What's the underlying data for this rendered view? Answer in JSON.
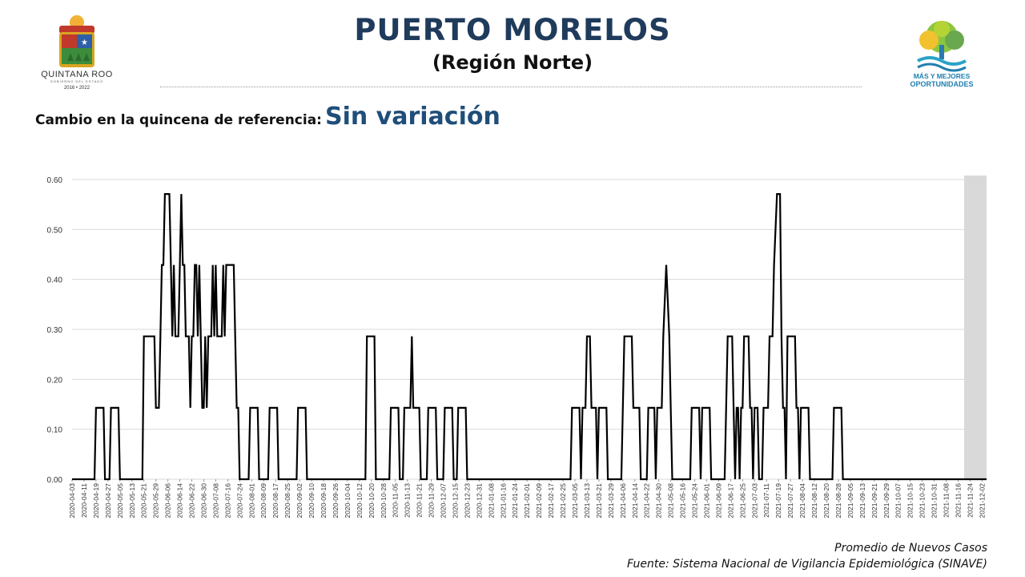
{
  "header": {
    "title": "PUERTO MORELOS",
    "subtitle": "(Región Norte)"
  },
  "left_logo": {
    "name": "QUINTANA ROO",
    "tagline": "GOBIERNO DEL ESTADO",
    "years": "2016 • 2022"
  },
  "right_logo": {
    "line1": "MÁS Y MEJORES",
    "line2": "OPORTUNIDADES"
  },
  "change": {
    "label": "Cambio en la quincena de referencia:",
    "value": "Sin variación"
  },
  "footer": {
    "line1": "Promedio de Nuevos Casos",
    "line2": "Fuente: Sistema Nacional de Vigilancia Epidemiológica (SINAVE)"
  },
  "colors": {
    "title": "#1f3b5c",
    "change_value": "#1f4e79",
    "line": "#000000",
    "grid": "#d9d9d9",
    "shade": "#d9d9d9"
  },
  "chart_data": {
    "type": "line",
    "title": "",
    "xlabel": "",
    "ylabel": "",
    "ylim": [
      0,
      0.6
    ],
    "grid": true,
    "legend": "none",
    "y_ticks": [
      "0.00",
      "0.10",
      "0.20",
      "0.30",
      "0.40",
      "0.50",
      "0.60"
    ],
    "x_tick_labels": [
      "2020-04-03",
      "2020-04-11",
      "2020-04-19",
      "2020-04-27",
      "2020-05-05",
      "2020-05-13",
      "2020-05-21",
      "2020-05-29",
      "2020-06-06",
      "2020-06-14",
      "2020-06-22",
      "2020-06-30",
      "2020-07-08",
      "2020-07-16",
      "2020-07-24",
      "2020-08-01",
      "2020-08-09",
      "2020-08-17",
      "2020-08-25",
      "2020-09-02",
      "2020-09-10",
      "2020-09-18",
      "2020-09-26",
      "2020-10-04",
      "2020-10-12",
      "2020-10-20",
      "2020-10-28",
      "2020-11-05",
      "2020-11-13",
      "2020-11-21",
      "2020-11-29",
      "2020-12-07",
      "2020-12-15",
      "2020-12-23",
      "2020-12-31",
      "2021-01-08",
      "2021-01-16",
      "2021-01-24",
      "2021-02-01",
      "2021-02-09",
      "2021-02-17",
      "2021-02-25",
      "2021-03-05",
      "2021-03-13",
      "2021-03-21",
      "2021-03-29",
      "2021-04-06",
      "2021-04-14",
      "2021-04-22",
      "2021-04-30",
      "2021-05-08",
      "2021-05-16",
      "2021-05-24",
      "2021-06-01",
      "2021-06-09",
      "2021-06-17",
      "2021-06-25",
      "2021-07-03",
      "2021-07-11",
      "2021-07-19",
      "2021-07-27",
      "2021-08-04",
      "2021-08-12",
      "2021-08-20",
      "2021-08-28",
      "2021-09-05",
      "2021-09-13",
      "2021-09-21",
      "2021-09-29",
      "2021-10-07",
      "2021-10-15",
      "2021-10-23",
      "2021-10-31",
      "2021-11-08",
      "2021-11-16",
      "2021-11-24",
      "2021-12-02"
    ],
    "x_range": [
      "2020-04-03",
      "2021-12-05"
    ],
    "shaded_region": [
      "2021-11-20",
      "2021-12-05"
    ],
    "series": [
      {
        "points": [
          [
            "2020-04-03",
            0
          ],
          [
            "2020-04-18",
            0
          ],
          [
            "2020-04-19",
            0.143
          ],
          [
            "2020-04-24",
            0.143
          ],
          [
            "2020-04-25",
            0
          ],
          [
            "2020-04-28",
            0
          ],
          [
            "2020-04-29",
            0.143
          ],
          [
            "2020-05-04",
            0.143
          ],
          [
            "2020-05-05",
            0
          ],
          [
            "2020-05-20",
            0
          ],
          [
            "2020-05-21",
            0.286
          ],
          [
            "2020-05-28",
            0.286
          ],
          [
            "2020-05-29",
            0.143
          ],
          [
            "2020-05-31",
            0.143
          ],
          [
            "2020-06-01",
            0.286
          ],
          [
            "2020-06-02",
            0.429
          ],
          [
            "2020-06-03",
            0.429
          ],
          [
            "2020-06-04",
            0.571
          ],
          [
            "2020-06-07",
            0.571
          ],
          [
            "2020-06-08",
            0.429
          ],
          [
            "2020-06-09",
            0.286
          ],
          [
            "2020-06-10",
            0.429
          ],
          [
            "2020-06-11",
            0.286
          ],
          [
            "2020-06-13",
            0.286
          ],
          [
            "2020-06-14",
            0.429
          ],
          [
            "2020-06-15",
            0.571
          ],
          [
            "2020-06-16",
            0.429
          ],
          [
            "2020-06-17",
            0.429
          ],
          [
            "2020-06-18",
            0.286
          ],
          [
            "2020-06-20",
            0.286
          ],
          [
            "2020-06-21",
            0.143
          ],
          [
            "2020-06-22",
            0.286
          ],
          [
            "2020-06-23",
            0.286
          ],
          [
            "2020-06-24",
            0.429
          ],
          [
            "2020-06-25",
            0.429
          ],
          [
            "2020-06-26",
            0.286
          ],
          [
            "2020-06-27",
            0.429
          ],
          [
            "2020-06-28",
            0.286
          ],
          [
            "2020-06-29",
            0.143
          ],
          [
            "2020-06-30",
            0.143
          ],
          [
            "2020-07-01",
            0.286
          ],
          [
            "2020-07-02",
            0.143
          ],
          [
            "2020-07-03",
            0.286
          ],
          [
            "2020-07-05",
            0.286
          ],
          [
            "2020-07-06",
            0.429
          ],
          [
            "2020-07-07",
            0.286
          ],
          [
            "2020-07-08",
            0.429
          ],
          [
            "2020-07-09",
            0.286
          ],
          [
            "2020-07-12",
            0.286
          ],
          [
            "2020-07-13",
            0.429
          ],
          [
            "2020-07-14",
            0.286
          ],
          [
            "2020-07-15",
            0.429
          ],
          [
            "2020-07-20",
            0.429
          ],
          [
            "2020-07-21",
            0.286
          ],
          [
            "2020-07-22",
            0.143
          ],
          [
            "2020-07-23",
            0.143
          ],
          [
            "2020-07-24",
            0
          ],
          [
            "2020-07-30",
            0
          ],
          [
            "2020-07-31",
            0.143
          ],
          [
            "2020-08-05",
            0.143
          ],
          [
            "2020-08-06",
            0
          ],
          [
            "2020-08-12",
            0
          ],
          [
            "2020-08-13",
            0.143
          ],
          [
            "2020-08-18",
            0.143
          ],
          [
            "2020-08-19",
            0
          ],
          [
            "2020-08-31",
            0
          ],
          [
            "2020-09-01",
            0.143
          ],
          [
            "2020-09-06",
            0.143
          ],
          [
            "2020-09-07",
            0
          ],
          [
            "2020-10-16",
            0
          ],
          [
            "2020-10-17",
            0.286
          ],
          [
            "2020-10-22",
            0.286
          ],
          [
            "2020-10-23",
            0
          ],
          [
            "2020-11-01",
            0
          ],
          [
            "2020-11-02",
            0.143
          ],
          [
            "2020-11-07",
            0.143
          ],
          [
            "2020-11-08",
            0
          ],
          [
            "2020-11-10",
            0
          ],
          [
            "2020-11-11",
            0.143
          ],
          [
            "2020-11-15",
            0.143
          ],
          [
            "2020-11-16",
            0.286
          ],
          [
            "2020-11-17",
            0.143
          ],
          [
            "2020-11-21",
            0.143
          ],
          [
            "2020-11-22",
            0
          ],
          [
            "2020-11-26",
            0
          ],
          [
            "2020-11-27",
            0.143
          ],
          [
            "2020-12-02",
            0.143
          ],
          [
            "2020-12-03",
            0
          ],
          [
            "2020-12-07",
            0
          ],
          [
            "2020-12-08",
            0.143
          ],
          [
            "2020-12-13",
            0.143
          ],
          [
            "2020-12-14",
            0
          ],
          [
            "2020-12-16",
            0
          ],
          [
            "2020-12-17",
            0.143
          ],
          [
            "2020-12-22",
            0.143
          ],
          [
            "2020-12-23",
            0
          ],
          [
            "2021-03-02",
            0
          ],
          [
            "2021-03-03",
            0.143
          ],
          [
            "2021-03-08",
            0.143
          ],
          [
            "2021-03-09",
            0
          ],
          [
            "2021-03-10",
            0.143
          ],
          [
            "2021-03-12",
            0.143
          ],
          [
            "2021-03-13",
            0.286
          ],
          [
            "2021-03-15",
            0.286
          ],
          [
            "2021-03-16",
            0.143
          ],
          [
            "2021-03-19",
            0.143
          ],
          [
            "2021-03-20",
            0
          ],
          [
            "2021-03-21",
            0.143
          ],
          [
            "2021-03-26",
            0.143
          ],
          [
            "2021-03-27",
            0
          ],
          [
            "2021-04-05",
            0
          ],
          [
            "2021-04-06",
            0.143
          ],
          [
            "2021-04-07",
            0.286
          ],
          [
            "2021-04-12",
            0.286
          ],
          [
            "2021-04-13",
            0.143
          ],
          [
            "2021-04-17",
            0.143
          ],
          [
            "2021-04-18",
            0
          ],
          [
            "2021-04-22",
            0
          ],
          [
            "2021-04-23",
            0.143
          ],
          [
            "2021-04-27",
            0.143
          ],
          [
            "2021-04-28",
            0
          ],
          [
            "2021-04-29",
            0.143
          ],
          [
            "2021-05-02",
            0.143
          ],
          [
            "2021-05-03",
            0.286
          ],
          [
            "2021-05-05",
            0.429
          ],
          [
            "2021-05-07",
            0.286
          ],
          [
            "2021-05-08",
            0.143
          ],
          [
            "2021-05-09",
            0
          ],
          [
            "2021-05-21",
            0
          ],
          [
            "2021-05-22",
            0.143
          ],
          [
            "2021-05-27",
            0.143
          ],
          [
            "2021-05-28",
            0
          ],
          [
            "2021-05-29",
            0.143
          ],
          [
            "2021-06-03",
            0.143
          ],
          [
            "2021-06-04",
            0
          ],
          [
            "2021-06-13",
            0
          ],
          [
            "2021-06-14",
            0.143
          ],
          [
            "2021-06-15",
            0.286
          ],
          [
            "2021-06-18",
            0.286
          ],
          [
            "2021-06-19",
            0.143
          ],
          [
            "2021-06-20",
            0
          ],
          [
            "2021-06-21",
            0.143
          ],
          [
            "2021-06-22",
            0.143
          ],
          [
            "2021-06-23",
            0
          ],
          [
            "2021-06-24",
            0.143
          ],
          [
            "2021-06-25",
            0.143
          ],
          [
            "2021-06-26",
            0.286
          ],
          [
            "2021-06-29",
            0.286
          ],
          [
            "2021-06-30",
            0.143
          ],
          [
            "2021-07-01",
            0.143
          ],
          [
            "2021-07-02",
            0
          ],
          [
            "2021-07-03",
            0.143
          ],
          [
            "2021-07-05",
            0.143
          ],
          [
            "2021-07-06",
            0
          ],
          [
            "2021-07-08",
            0
          ],
          [
            "2021-07-09",
            0.143
          ],
          [
            "2021-07-12",
            0.143
          ],
          [
            "2021-07-13",
            0.286
          ],
          [
            "2021-07-15",
            0.286
          ],
          [
            "2021-07-16",
            0.429
          ],
          [
            "2021-07-18",
            0.571
          ],
          [
            "2021-07-20",
            0.571
          ],
          [
            "2021-07-21",
            0.286
          ],
          [
            "2021-07-22",
            0.143
          ],
          [
            "2021-07-23",
            0.143
          ],
          [
            "2021-07-24",
            0
          ],
          [
            "2021-07-25",
            0.286
          ],
          [
            "2021-07-30",
            0.286
          ],
          [
            "2021-07-31",
            0.143
          ],
          [
            "2021-08-01",
            0.143
          ],
          [
            "2021-08-02",
            0
          ],
          [
            "2021-08-03",
            0.143
          ],
          [
            "2021-08-08",
            0.143
          ],
          [
            "2021-08-09",
            0
          ],
          [
            "2021-08-24",
            0
          ],
          [
            "2021-08-25",
            0.143
          ],
          [
            "2021-08-30",
            0.143
          ],
          [
            "2021-08-31",
            0
          ],
          [
            "2021-12-05",
            0
          ]
        ]
      }
    ]
  }
}
